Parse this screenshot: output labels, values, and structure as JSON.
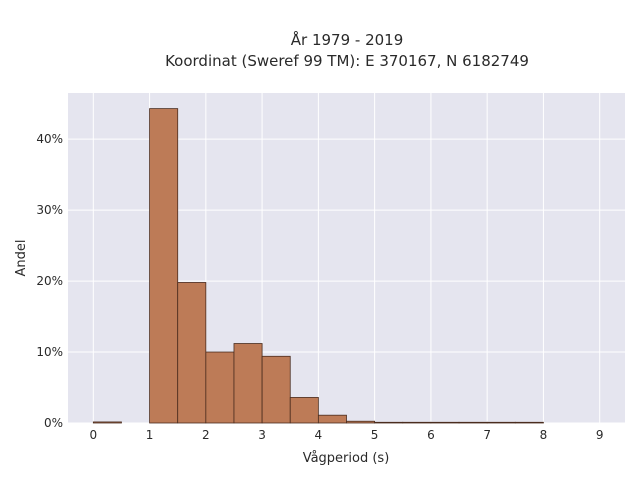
{
  "chart_data": {
    "type": "bar",
    "title": "År 1979 - 2019",
    "subtitle": "Koordinat (Sweref 99 TM): E 370167, N 6182749",
    "xlabel": "Vågperiod (s)",
    "ylabel": "Andel",
    "bin_width": 0.5,
    "bins": [
      {
        "x0": 0.0,
        "x1": 0.5,
        "value": 0.15
      },
      {
        "x0": 1.0,
        "x1": 1.5,
        "value": 44.3
      },
      {
        "x0": 1.5,
        "x1": 2.0,
        "value": 19.8
      },
      {
        "x0": 2.0,
        "x1": 2.5,
        "value": 10.0
      },
      {
        "x0": 2.5,
        "x1": 3.0,
        "value": 11.2
      },
      {
        "x0": 3.0,
        "x1": 3.5,
        "value": 9.4
      },
      {
        "x0": 3.5,
        "x1": 4.0,
        "value": 3.6
      },
      {
        "x0": 4.0,
        "x1": 4.5,
        "value": 1.1
      },
      {
        "x0": 4.5,
        "x1": 5.0,
        "value": 0.25
      },
      {
        "x0": 5.0,
        "x1": 5.5,
        "value": 0.1
      },
      {
        "x0": 5.5,
        "x1": 6.0,
        "value": 0.1
      },
      {
        "x0": 6.0,
        "x1": 6.5,
        "value": 0.1
      },
      {
        "x0": 6.5,
        "x1": 7.0,
        "value": 0.1
      },
      {
        "x0": 7.0,
        "x1": 7.5,
        "value": 0.1
      },
      {
        "x0": 7.5,
        "x1": 8.0,
        "value": 0.1
      }
    ],
    "xlim": [
      -0.45,
      9.45
    ],
    "ylim": [
      0,
      46.5
    ],
    "xticks": [
      0,
      1,
      2,
      3,
      4,
      5,
      6,
      7,
      8,
      9
    ],
    "xtick_labels": [
      "0",
      "1",
      "2",
      "3",
      "4",
      "5",
      "6",
      "7",
      "8",
      "9"
    ],
    "yticks": [
      0,
      10,
      20,
      30,
      40
    ],
    "ytick_labels": [
      "0%",
      "10%",
      "20%",
      "30%",
      "40%"
    ],
    "grid": true,
    "colors": {
      "bar_fill": "#bd7b57",
      "bar_stroke": "#4a2c1e",
      "plot_bg": "#e5e5ef",
      "grid": "#ffffff"
    }
  }
}
